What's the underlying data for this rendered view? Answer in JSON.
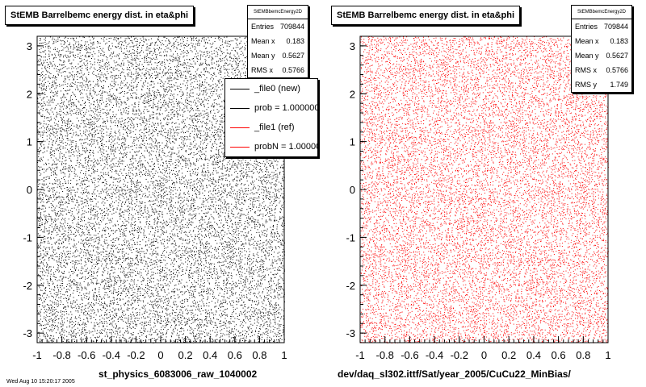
{
  "chart_data": [
    {
      "type": "scatter",
      "title": "StEMB Barrelbemc energy dist. in eta&phi",
      "xlabel": "st_physics_6083006_raw_1040002",
      "ylabel": "",
      "xlim": [
        -1,
        1
      ],
      "ylim": [
        -3.2,
        3.2
      ],
      "x_ticks": [
        "-1",
        "-0.8",
        "-0.6",
        "-0.4",
        "-0.2",
        "0",
        "0.2",
        "0.4",
        "0.6",
        "0.8",
        "1"
      ],
      "y_ticks": [
        "-3",
        "-2",
        "-1",
        "0",
        "1",
        "2",
        "3"
      ],
      "marker_color": "#000000",
      "point_density": "uniform",
      "stats": {
        "name": "StEMBbemcEnergy2D",
        "rows": [
          {
            "label": "Entries",
            "value": "709844"
          },
          {
            "label": "Mean x",
            "value": "0.183"
          },
          {
            "label": "Mean y",
            "value": "0.5627"
          },
          {
            "label": "RMS x",
            "value": "0.5766"
          }
        ]
      },
      "legend": {
        "position": "top-right",
        "entries": [
          {
            "label": "_file0 (new)",
            "color": "#000000"
          },
          {
            "label": "prob = 1.000000",
            "color": "#000000"
          },
          {
            "label": "_file1 (ref)",
            "color": "#ff0000"
          },
          {
            "label": "probN = 1.000000",
            "color": "#ff0000"
          }
        ]
      }
    },
    {
      "type": "scatter",
      "title": "StEMB Barrelbemc energy dist. in eta&phi",
      "xlabel": "dev/daq_sl302.ittf/Sat/year_2005/CuCu22_MinBias/",
      "ylabel": "",
      "xlim": [
        -1,
        1
      ],
      "ylim": [
        -3.2,
        3.2
      ],
      "x_ticks": [
        "-1",
        "-0.8",
        "-0.6",
        "-0.4",
        "-0.2",
        "0",
        "0.2",
        "0.4",
        "0.6",
        "0.8",
        "1"
      ],
      "y_ticks": [
        "-3",
        "-2",
        "-1",
        "0",
        "1",
        "2",
        "3"
      ],
      "marker_color": "#ff0000",
      "point_density": "uniform",
      "stats": {
        "name": "StEMBbemcEnergy2D",
        "rows": [
          {
            "label": "Entries",
            "value": "709844"
          },
          {
            "label": "Mean x",
            "value": "0.183"
          },
          {
            "label": "Mean y",
            "value": "0.5627"
          },
          {
            "label": "RMS x",
            "value": "0.5766"
          },
          {
            "label": "RMS y",
            "value": "1.749"
          }
        ]
      }
    }
  ],
  "footer": "Wed Aug 10 15:20:17 2005"
}
